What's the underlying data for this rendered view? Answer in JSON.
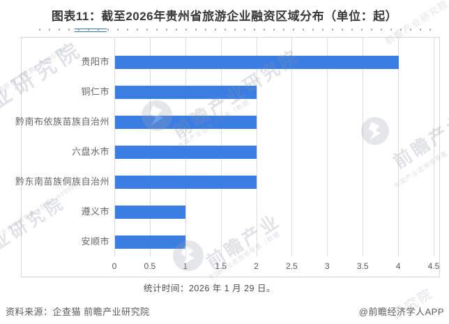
{
  "title": "图表11：截至2026年贵州省旅游企业融资区域分布（单位：起）",
  "chart_data": {
    "type": "bar",
    "orientation": "horizontal",
    "title": "截至2026年贵州省旅游企业融资区域分布",
    "unit": "起",
    "categories": [
      "贵阳市",
      "铜仁市",
      "黔南布依族苗族自治州",
      "六盘水市",
      "黔东南苗族侗族自治州",
      "遵义市",
      "安顺市"
    ],
    "values": [
      4,
      2,
      2,
      2,
      2,
      1,
      1
    ],
    "xlim": [
      0,
      4.5
    ],
    "xticks": [
      "0",
      "0.5",
      "1",
      "1.5",
      "2",
      "2.5",
      "3",
      "3.5",
      "4",
      "4.5"
    ],
    "bar_color": "#3a7de3",
    "grid": "vertical-only",
    "legend": "none",
    "xlabel": "",
    "ylabel": ""
  },
  "footnote": "统计时间：2026 年 1 月 29 日。",
  "footer": {
    "source": "资料来源：企查猫 前瞻产业研究院",
    "credit": "@前瞻经济学人APP"
  },
  "watermark": {
    "brand": "前瞻产业研究院",
    "brand_short": "前瞻产业",
    "tagline": "中国产业咨询领导者（股票：839599）",
    "tagline_short": "中国产业咨询领导者（数据",
    "suffix": "研究院"
  }
}
